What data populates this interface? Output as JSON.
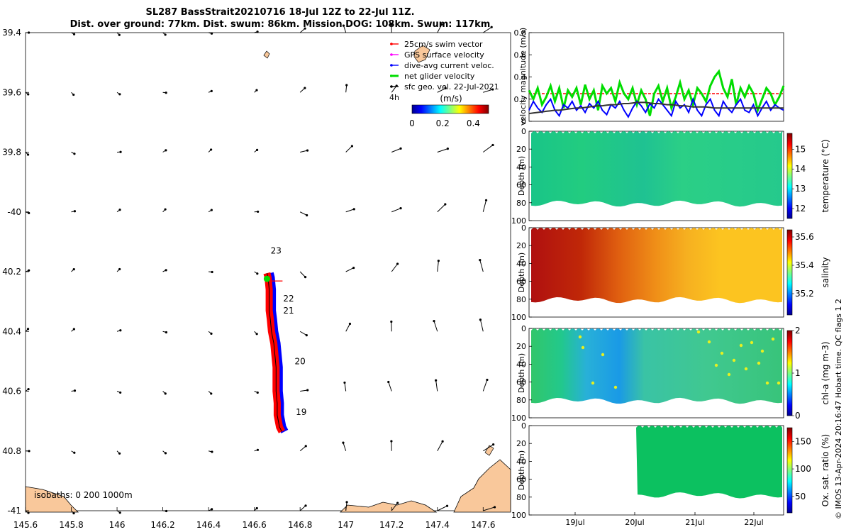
{
  "header": {
    "title_line1": "SL287 BassStrait20210716 18-Jul 12Z to 22-Jul 11Z.",
    "title_line2": "Dist. over ground: 77km. Dist. swum: 86km. Mission DOG: 108km. Swum: 117km"
  },
  "credit": "© IMOS 13-Apr-2024 20:16:47 Hobart time. QC flags 1  2",
  "colors": {
    "swim": "#ff0000",
    "gps": "#ff00ff",
    "dive_avg": "#0000ff",
    "net": "#00dd00",
    "sfc_geo": "#000000",
    "land": "#f9c89b",
    "threshold": "#ff0000"
  },
  "chart_data": [
    {
      "type": "map",
      "name": "track",
      "xlim": [
        145.6,
        147.72
      ],
      "ylim": [
        -41,
        -39.4
      ],
      "x_ticks": [
        145.6,
        145.8,
        146,
        146.2,
        146.4,
        146.6,
        146.8,
        147,
        147.2,
        147.4,
        147.6
      ],
      "x_tick_labels": [
        "145.6",
        "145.8",
        "146",
        "146.2",
        "146.4",
        "146.6",
        "146.8",
        "147",
        "147.2",
        "147.4",
        "147.6"
      ],
      "y_ticks": [
        -39.4,
        -39.6,
        -39.8,
        -40,
        -40.2,
        -40.4,
        -40.6,
        -40.8,
        -41
      ],
      "y_tick_labels": [
        "39.4",
        "39.6",
        "39.8",
        "-40",
        "40.2",
        "40.4",
        "40.6",
        "40.8",
        "-41"
      ],
      "legend": [
        {
          "label": "25cm/s swim vector",
          "color": "#ff0000"
        },
        {
          "label": "GPS surface velocity",
          "color": "#ff00ff"
        },
        {
          "label": "dive-avg current veloc.",
          "color": "#0000ff"
        },
        {
          "label": "net glider velocity",
          "color": "#00dd00"
        },
        {
          "label": "sfc geo. vel. 22-Jul-2021",
          "color": "#000000"
        }
      ],
      "legend_extra": "4h",
      "colorbar": {
        "label": "(m/s)",
        "ticks": [
          "0",
          "0.2",
          "0.4"
        ],
        "range": [
          0,
          0.5
        ]
      },
      "day_labels": [
        {
          "label": "23",
          "lon": 146.695,
          "lat": -40.14
        },
        {
          "label": "22",
          "lon": 146.75,
          "lat": -40.3
        },
        {
          "label": "21",
          "lon": 146.75,
          "lat": -40.34
        },
        {
          "label": "20",
          "lon": 146.8,
          "lat": -40.51
        },
        {
          "label": "19",
          "lon": 146.805,
          "lat": -40.68
        }
      ],
      "track": [
        [
          146.655,
          -40.205
        ],
        [
          146.66,
          -40.22
        ],
        [
          146.665,
          -40.26
        ],
        [
          146.665,
          -40.3
        ],
        [
          146.665,
          -40.33
        ],
        [
          146.67,
          -40.36
        ],
        [
          146.675,
          -40.4
        ],
        [
          146.685,
          -40.44
        ],
        [
          146.69,
          -40.48
        ],
        [
          146.695,
          -40.52
        ],
        [
          146.695,
          -40.56
        ],
        [
          146.695,
          -40.6
        ],
        [
          146.7,
          -40.64
        ],
        [
          146.7,
          -40.68
        ],
        [
          146.71,
          -40.72
        ],
        [
          146.72,
          -40.735
        ]
      ],
      "isobaths_label": "isobaths: 0   200  1000m"
    },
    {
      "type": "line",
      "name": "velocity",
      "ylabel": "velocity magnitude (m/s)",
      "ylim": [
        0,
        0.8
      ],
      "y_ticks": [
        "0",
        "0.2",
        "0.4",
        "0.6",
        "0.8"
      ],
      "threshold": 0.25,
      "series": [
        {
          "color": "#00dd00",
          "values": [
            0.28,
            0.2,
            0.3,
            0.15,
            0.22,
            0.32,
            0.18,
            0.3,
            0.12,
            0.28,
            0.22,
            0.3,
            0.15,
            0.33,
            0.2,
            0.28,
            0.1,
            0.32,
            0.25,
            0.3,
            0.18,
            0.35,
            0.25,
            0.2,
            0.3,
            0.15,
            0.28,
            0.2,
            0.05,
            0.25,
            0.32,
            0.18,
            0.3,
            0.12,
            0.22,
            0.35,
            0.2,
            0.28,
            0.15,
            0.3,
            0.25,
            0.18,
            0.32,
            0.4,
            0.45,
            0.3,
            0.22,
            0.38,
            0.15,
            0.3,
            0.22,
            0.32,
            0.25,
            0.1,
            0.2,
            0.3,
            0.25,
            0.15,
            0.22,
            0.32
          ]
        },
        {
          "color": "#0000ff",
          "values": [
            0.1,
            0.18,
            0.12,
            0.08,
            0.15,
            0.2,
            0.1,
            0.05,
            0.15,
            0.12,
            0.18,
            0.1,
            0.14,
            0.08,
            0.16,
            0.12,
            0.18,
            0.1,
            0.06,
            0.15,
            0.12,
            0.18,
            0.1,
            0.04,
            0.12,
            0.18,
            0.14,
            0.08,
            0.16,
            0.12,
            0.2,
            0.15,
            0.1,
            0.05,
            0.18,
            0.12,
            0.15,
            0.08,
            0.2,
            0.1,
            0.05,
            0.15,
            0.2,
            0.1,
            0.05,
            0.18,
            0.12,
            0.08,
            0.15,
            0.2,
            0.1,
            0.08,
            0.15,
            0.05,
            0.12,
            0.18,
            0.1,
            0.15,
            0.12,
            0.1
          ]
        },
        {
          "color": "#333333",
          "values": [
            0.07,
            0.075,
            0.08,
            0.085,
            0.09,
            0.095,
            0.1,
            0.1,
            0.105,
            0.11,
            0.115,
            0.12,
            0.12,
            0.125,
            0.13,
            0.135,
            0.14,
            0.14,
            0.145,
            0.15,
            0.15,
            0.155,
            0.16,
            0.16,
            0.165,
            0.17,
            0.17,
            0.17,
            0.165,
            0.16,
            0.16,
            0.155,
            0.15,
            0.15,
            0.145,
            0.14,
            0.14,
            0.135,
            0.13,
            0.13,
            0.13,
            0.13,
            0.125,
            0.12,
            0.12,
            0.12,
            0.12,
            0.12,
            0.12,
            0.12,
            0.12,
            0.12,
            0.12,
            0.12,
            0.12,
            0.12,
            0.12,
            0.12,
            0.12,
            0.12
          ]
        }
      ]
    },
    {
      "type": "heatmap",
      "name": "temperature",
      "ylabel": "Depth (m)",
      "clabel": "temperature (°C)",
      "ylim": [
        0,
        100
      ],
      "y_ticks": [
        "0",
        "20",
        "40",
        "60",
        "80",
        "100"
      ],
      "c_ticks": [
        "15",
        "14",
        "13",
        "12"
      ],
      "c_range": [
        11.5,
        15.8
      ]
    },
    {
      "type": "heatmap",
      "name": "salinity",
      "ylabel": "Depth (m)",
      "clabel": "salinity",
      "ylim": [
        0,
        100
      ],
      "y_ticks": [
        "0",
        "20",
        "40",
        "60",
        "80",
        "100"
      ],
      "c_ticks": [
        "35.6",
        "35.4",
        "35.2"
      ],
      "c_range": [
        35.05,
        35.65
      ]
    },
    {
      "type": "heatmap",
      "name": "chla",
      "ylabel": "Depth (m)",
      "clabel": "chl-a (mg m-3)",
      "ylim": [
        0,
        100
      ],
      "y_ticks": [
        "0",
        "20",
        "40",
        "60",
        "80",
        "100"
      ],
      "c_ticks": [
        "2",
        "1",
        "0"
      ],
      "c_range": [
        0,
        2
      ]
    },
    {
      "type": "heatmap",
      "name": "oxygen",
      "ylabel": "Depth (m)",
      "clabel": "Ox. sat. ratio (%)",
      "ylim": [
        0,
        100
      ],
      "y_ticks": [
        "0",
        "20",
        "40",
        "60",
        "80",
        "100"
      ],
      "c_ticks": [
        "150",
        "100",
        "50"
      ],
      "c_range": [
        20,
        175
      ],
      "x_ticks": [
        "19Jul",
        "20Jul",
        "21Jul",
        "22Jul"
      ]
    }
  ]
}
